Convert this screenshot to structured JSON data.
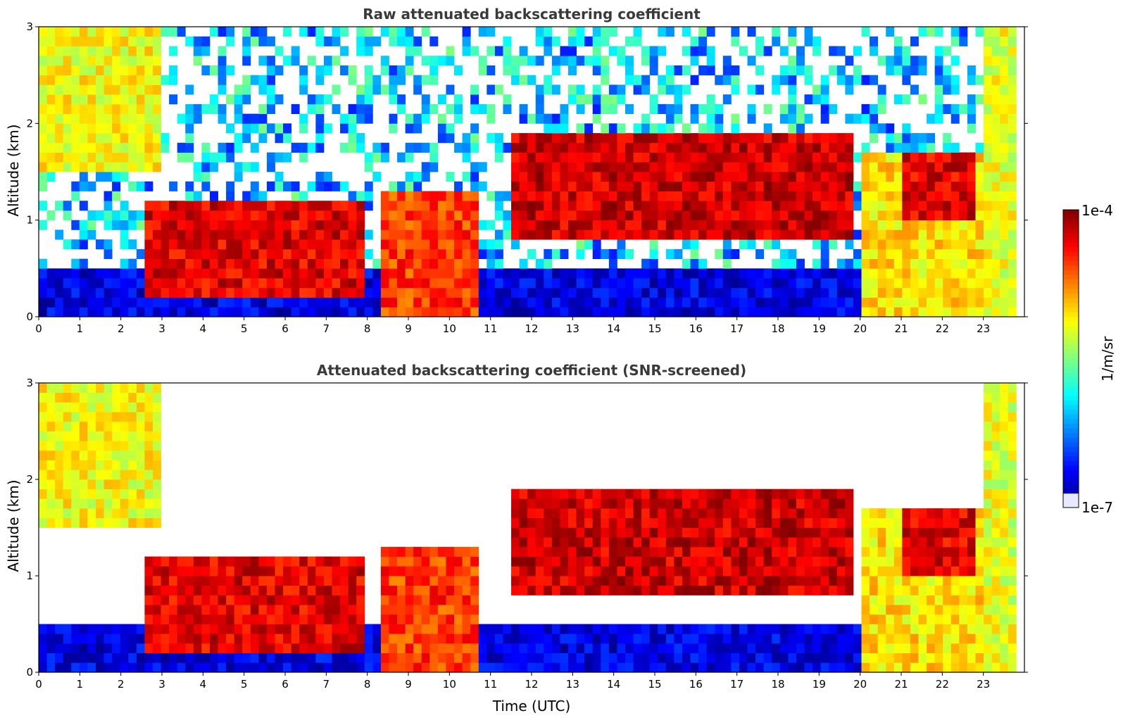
{
  "chart_data": [
    {
      "type": "heatmap",
      "title": "Raw attenuated backscattering coefficient",
      "xlabel": "",
      "ylabel": "Altitude (km)",
      "xlim": [
        0,
        24
      ],
      "ylim": [
        0,
        3
      ],
      "xticks": [
        "0",
        "1",
        "2",
        "3",
        "4",
        "5",
        "6",
        "7",
        "8",
        "9",
        "10",
        "11",
        "12",
        "13",
        "14",
        "15",
        "16",
        "17",
        "18",
        "19",
        "20",
        "21",
        "22",
        "23"
      ],
      "yticks": [
        "0",
        "1",
        "2",
        "3"
      ],
      "screened": false,
      "features": [
        {
          "name": "boundary-layer",
          "x": [
            0,
            23.8
          ],
          "y": [
            0,
            0.45
          ],
          "level": 0.1
        },
        {
          "name": "cirrus-early",
          "x": [
            0,
            3.0
          ],
          "y": [
            1.5,
            3.0
          ],
          "level": 0.62
        },
        {
          "name": "cloud-layer-morning",
          "x": [
            2.5,
            8.0
          ],
          "y": [
            0.25,
            1.2
          ],
          "level": 0.9
        },
        {
          "name": "precipitation-morning",
          "x": [
            8.3,
            10.7
          ],
          "y": [
            0,
            1.3
          ],
          "level": 0.82
        },
        {
          "name": "midlevel-clouds",
          "x": [
            11.5,
            19.8
          ],
          "y": [
            0.8,
            1.9
          ],
          "level": 0.92
        },
        {
          "name": "precipitation-evening",
          "x": [
            20.0,
            23.0
          ],
          "y": [
            0,
            1.7
          ],
          "level": 0.65
        },
        {
          "name": "cloud-top-evening",
          "x": [
            21.0,
            22.8
          ],
          "y": [
            1.0,
            1.7
          ],
          "level": 0.9
        },
        {
          "name": "cirrus-late",
          "x": [
            23.0,
            23.8
          ],
          "y": [
            0,
            3.0
          ],
          "level": 0.6
        }
      ]
    },
    {
      "type": "heatmap",
      "title": "Attenuated backscattering coefficient (SNR-screened)",
      "xlabel": "Time (UTC)",
      "ylabel": "Altitude (km)",
      "xlim": [
        0,
        24
      ],
      "ylim": [
        0,
        3
      ],
      "xticks": [
        "0",
        "1",
        "2",
        "3",
        "4",
        "5",
        "6",
        "7",
        "8",
        "9",
        "10",
        "11",
        "12",
        "13",
        "14",
        "15",
        "16",
        "17",
        "18",
        "19",
        "20",
        "21",
        "22",
        "23"
      ],
      "yticks": [
        "0",
        "1",
        "2",
        "3"
      ],
      "screened": true,
      "features": [
        {
          "name": "boundary-layer",
          "x": [
            0,
            23.8
          ],
          "y": [
            0,
            0.45
          ],
          "level": 0.1
        },
        {
          "name": "cirrus-early",
          "x": [
            0,
            3.0
          ],
          "y": [
            1.5,
            3.0
          ],
          "level": 0.62
        },
        {
          "name": "cloud-layer-morning",
          "x": [
            2.5,
            8.0
          ],
          "y": [
            0.25,
            1.2
          ],
          "level": 0.9
        },
        {
          "name": "precipitation-morning",
          "x": [
            8.3,
            10.7
          ],
          "y": [
            0,
            1.3
          ],
          "level": 0.82
        },
        {
          "name": "midlevel-clouds",
          "x": [
            11.5,
            19.8
          ],
          "y": [
            0.8,
            1.9
          ],
          "level": 0.92
        },
        {
          "name": "precipitation-evening",
          "x": [
            20.0,
            23.0
          ],
          "y": [
            0,
            1.7
          ],
          "level": 0.65
        },
        {
          "name": "cloud-top-evening",
          "x": [
            21.0,
            22.8
          ],
          "y": [
            1.0,
            1.7
          ],
          "level": 0.9
        },
        {
          "name": "cirrus-late",
          "x": [
            23.0,
            23.8
          ],
          "y": [
            0,
            3.0
          ],
          "level": 0.6
        }
      ]
    }
  ],
  "colorbar": {
    "label": "1/m/sr",
    "min_label": "1e-7",
    "max_label": "1e-4",
    "colormap": "jet"
  }
}
